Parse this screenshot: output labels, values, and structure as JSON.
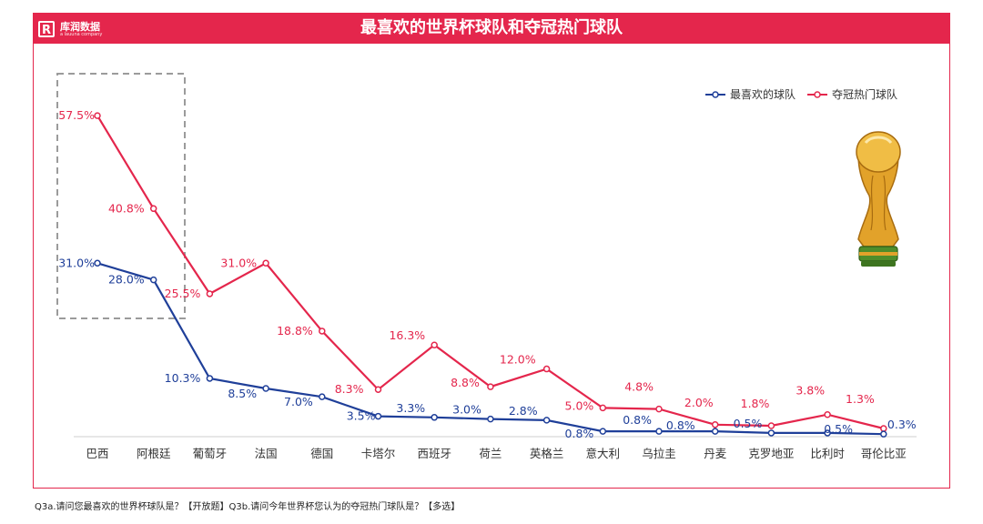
{
  "header": {
    "title": "最喜欢的世界杯球队和夺冠热门球队",
    "logo_name": "库润数据",
    "logo_sub": "a lauuna company",
    "logo_mark": "R"
  },
  "colors": {
    "favorite": "#1f3f99",
    "champion": "#e4264c",
    "brand": "#e4264c"
  },
  "chart_data": {
    "type": "line",
    "title": "最喜欢的世界杯球队和夺冠热门球队",
    "categories": [
      "巴西",
      "阿根廷",
      "葡萄牙",
      "法国",
      "德国",
      "卡塔尔",
      "西班牙",
      "荷兰",
      "英格兰",
      "意大利",
      "乌拉圭",
      "丹麦",
      "克罗地亚",
      "比利时",
      "哥伦比亚"
    ],
    "series": [
      {
        "name": "最喜欢的球队",
        "values": [
          31.0,
          28.0,
          10.3,
          8.5,
          7.0,
          3.5,
          3.3,
          3.0,
          2.8,
          0.8,
          0.8,
          0.8,
          0.5,
          0.5,
          0.3
        ],
        "labels": [
          "31.0%",
          "28.0%",
          "10.3%",
          "8.5%",
          "7.0%",
          "3.5%",
          "3.3%",
          "3.0%",
          "2.8%",
          "0.8%",
          "0.8%",
          "0.8%",
          "0.5%",
          "0.5%",
          "0.3%"
        ]
      },
      {
        "name": "夺冠热门球队",
        "values": [
          57.5,
          40.8,
          25.5,
          31.0,
          18.8,
          8.3,
          16.3,
          8.8,
          12.0,
          5.0,
          4.8,
          2.0,
          1.8,
          3.8,
          1.3
        ],
        "labels": [
          "57.5%",
          "40.8%",
          "25.5%",
          "31.0%",
          "18.8%",
          "8.3%",
          "16.3%",
          "8.8%",
          "12.0%",
          "5.0%",
          "4.8%",
          "2.0%",
          "1.8%",
          "3.8%",
          "1.3%"
        ]
      }
    ],
    "ylim": [
      0,
      60
    ],
    "xlabel": "",
    "ylabel": "",
    "grid": false,
    "legend": "top-right",
    "highlight_categories": [
      "巴西",
      "阿根廷"
    ]
  },
  "footnote": "Q3a.请问您最喜欢的世界杯球队是？【开放题】Q3b.请问今年世界杯您认为的夺冠热门球队是？【多选】"
}
